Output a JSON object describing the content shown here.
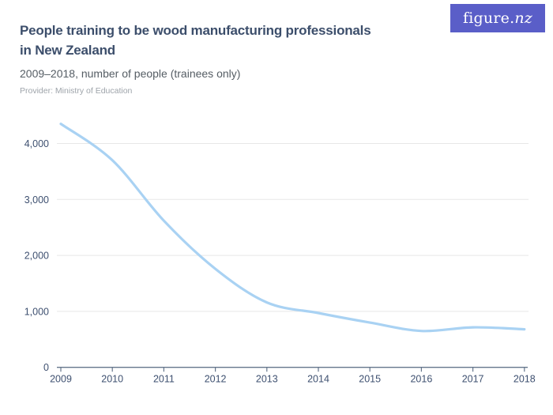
{
  "header": {
    "title_line1": "People training to be wood manufacturing professionals",
    "title_line2": "in New Zealand",
    "subtitle": "2009–2018, number of people (trainees only)",
    "provider": "Provider: Ministry of Education",
    "logo_text_main": "figure.",
    "logo_text_nz": "nz"
  },
  "colors": {
    "logo_bg": "#5a5ec8",
    "title": "#3c4e6b",
    "subtitle": "#555d64",
    "provider": "#9ea4aa",
    "line": "#a9d2f3",
    "gridline": "#e7e7e7",
    "axis_line": "#65768c",
    "axis_label": "#3e5070"
  },
  "chart_data": {
    "type": "line",
    "title": "People training to be wood manufacturing professionals in New Zealand",
    "subtitle": "2009-2018, number of people (trainees only)",
    "categories": [
      "2009",
      "2010",
      "2011",
      "2012",
      "2013",
      "2014",
      "2015",
      "2016",
      "2017",
      "2018"
    ],
    "values": [
      4350,
      3700,
      2620,
      1760,
      1160,
      970,
      800,
      650,
      715,
      680
    ],
    "series_name": "Number of people (trainees only)",
    "xlabel": "",
    "ylabel": "",
    "ylim": [
      0,
      4500
    ],
    "y_ticks": [
      0,
      1000,
      2000,
      3000,
      4000
    ],
    "y_tick_labels": [
      "0",
      "1,000",
      "2,000",
      "3,000",
      "4,000"
    ],
    "grid": "horizontal",
    "legend": "none",
    "line_color": "#a9d2f3"
  }
}
